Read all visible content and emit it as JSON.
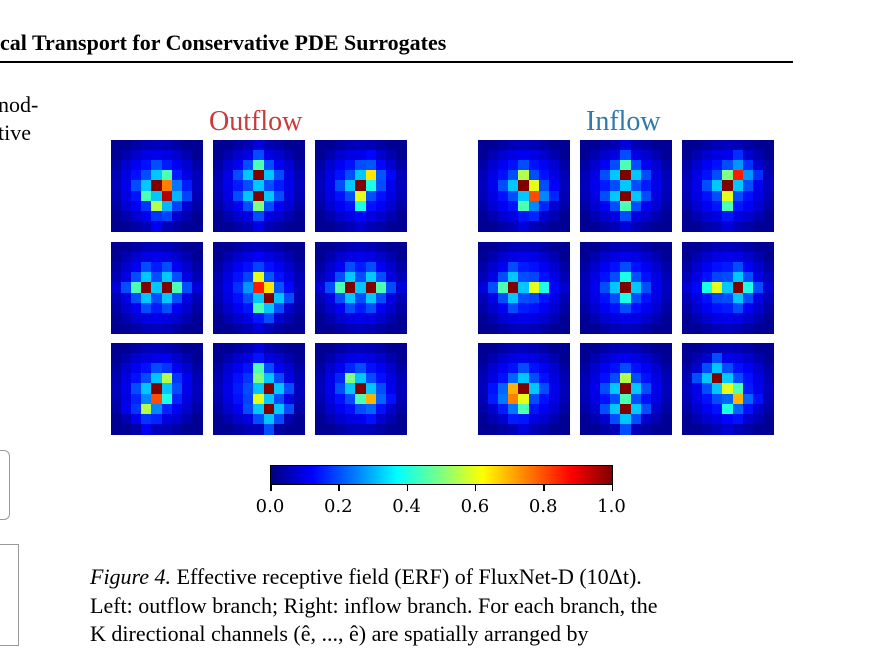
{
  "header": {
    "title": "cal Transport for Conservative PDE Surrogates"
  },
  "left_column": {
    "lines": [
      "nod-",
      "tive"
    ]
  },
  "figure": {
    "branches": [
      {
        "label": "Outflow",
        "color": "#c93a3a",
        "panels": [
          {
            "name": "outflow-panel-1",
            "hotspots": [
              [
                4,
                4,
                1.0
              ],
              [
                4,
                5,
                0.75
              ],
              [
                5,
                5,
                0.95
              ],
              [
                3,
                5,
                0.45
              ],
              [
                6,
                4,
                0.55
              ],
              [
                5,
                3,
                0.45
              ]
            ]
          },
          {
            "name": "outflow-panel-2",
            "hotspots": [
              [
                3,
                4,
                1.0
              ],
              [
                5,
                4,
                1.0
              ],
              [
                6,
                4,
                0.5
              ],
              [
                2,
                4,
                0.45
              ]
            ]
          },
          {
            "name": "outflow-panel-3",
            "hotspots": [
              [
                3,
                5,
                0.65
              ],
              [
                4,
                4,
                1.0
              ],
              [
                5,
                4,
                0.6
              ],
              [
                4,
                5,
                0.4
              ],
              [
                6,
                4,
                0.4
              ]
            ]
          },
          {
            "name": "outflow-panel-4",
            "hotspots": [
              [
                4,
                3,
                1.0
              ],
              [
                4,
                5,
                1.0
              ],
              [
                4,
                2,
                0.45
              ],
              [
                4,
                6,
                0.45
              ]
            ]
          },
          {
            "name": "outflow-panel-5",
            "hotspots": [
              [
                4,
                4,
                0.85
              ],
              [
                3,
                4,
                0.6
              ],
              [
                5,
                5,
                1.0
              ],
              [
                4,
                5,
                0.65
              ],
              [
                6,
                4,
                0.45
              ]
            ]
          },
          {
            "name": "outflow-panel-6",
            "hotspots": [
              [
                4,
                3,
                1.0
              ],
              [
                4,
                5,
                1.0
              ],
              [
                4,
                2,
                0.45
              ],
              [
                4,
                6,
                0.45
              ]
            ]
          },
          {
            "name": "outflow-panel-7",
            "hotspots": [
              [
                3,
                5,
                0.55
              ],
              [
                4,
                4,
                1.0
              ],
              [
                5,
                4,
                0.8
              ],
              [
                6,
                3,
                0.55
              ],
              [
                5,
                5,
                0.4
              ]
            ]
          },
          {
            "name": "outflow-panel-8",
            "hotspots": [
              [
                3,
                4,
                0.5
              ],
              [
                4,
                5,
                1.0
              ],
              [
                5,
                4,
                0.6
              ],
              [
                6,
                5,
                1.0
              ],
              [
                2,
                4,
                0.45
              ]
            ]
          },
          {
            "name": "outflow-panel-9",
            "hotspots": [
              [
                3,
                3,
                0.5
              ],
              [
                4,
                4,
                1.0
              ],
              [
                5,
                5,
                0.7
              ],
              [
                5,
                4,
                0.45
              ]
            ]
          }
        ]
      },
      {
        "label": "Inflow",
        "color": "#2e7aad",
        "panels": [
          {
            "name": "inflow-panel-1",
            "hotspots": [
              [
                3,
                4,
                0.55
              ],
              [
                4,
                4,
                1.0
              ],
              [
                5,
                5,
                0.8
              ],
              [
                4,
                5,
                0.6
              ],
              [
                6,
                4,
                0.45
              ]
            ]
          },
          {
            "name": "inflow-panel-2",
            "hotspots": [
              [
                3,
                4,
                1.0
              ],
              [
                5,
                4,
                1.0
              ],
              [
                6,
                4,
                0.45
              ],
              [
                2,
                4,
                0.45
              ]
            ]
          },
          {
            "name": "inflow-panel-3",
            "hotspots": [
              [
                3,
                5,
                0.85
              ],
              [
                4,
                4,
                1.0
              ],
              [
                5,
                4,
                0.6
              ],
              [
                6,
                4,
                0.45
              ],
              [
                3,
                4,
                0.5
              ]
            ]
          },
          {
            "name": "inflow-panel-4",
            "hotspots": [
              [
                4,
                3,
                1.0
              ],
              [
                4,
                5,
                0.6
              ],
              [
                4,
                2,
                0.45
              ],
              [
                4,
                6,
                0.4
              ]
            ]
          },
          {
            "name": "inflow-panel-5",
            "hotspots": [
              [
                4,
                4,
                1.0
              ],
              [
                3,
                4,
                0.4
              ],
              [
                5,
                4,
                0.4
              ]
            ]
          },
          {
            "name": "inflow-panel-6",
            "hotspots": [
              [
                4,
                3,
                0.6
              ],
              [
                4,
                5,
                1.0
              ],
              [
                4,
                2,
                0.4
              ],
              [
                4,
                6,
                0.4
              ]
            ]
          },
          {
            "name": "inflow-panel-7",
            "hotspots": [
              [
                4,
                3,
                0.7
              ],
              [
                4,
                4,
                1.0
              ],
              [
                5,
                3,
                0.75
              ],
              [
                5,
                4,
                0.6
              ],
              [
                6,
                4,
                0.45
              ]
            ]
          },
          {
            "name": "inflow-panel-8",
            "hotspots": [
              [
                3,
                4,
                0.55
              ],
              [
                4,
                4,
                1.0
              ],
              [
                6,
                4,
                1.0
              ],
              [
                5,
                4,
                0.45
              ]
            ]
          },
          {
            "name": "inflow-panel-9",
            "hotspots": [
              [
                3,
                3,
                1.0
              ],
              [
                4,
                4,
                0.6
              ],
              [
                5,
                5,
                0.7
              ],
              [
                4,
                5,
                0.45
              ],
              [
                6,
                4,
                0.4
              ]
            ]
          }
        ]
      }
    ],
    "colorbar": {
      "min": 0.0,
      "max": 1.0,
      "colormap": "jet",
      "ticks": [
        "0.0",
        "0.2",
        "0.4",
        "0.6",
        "0.8",
        "1.0"
      ]
    },
    "caption": {
      "label": "Figure 4.",
      "line1": " Effective receptive field (ERF) of FluxNet-D (10Δt).",
      "line2": "Left: outflow branch; Right: inflow branch. For each branch, the",
      "line3": "K directional channels (ê",
      "line3_tail": ", ..., ê",
      "line3_end": ") are spatially arranged by"
    }
  }
}
